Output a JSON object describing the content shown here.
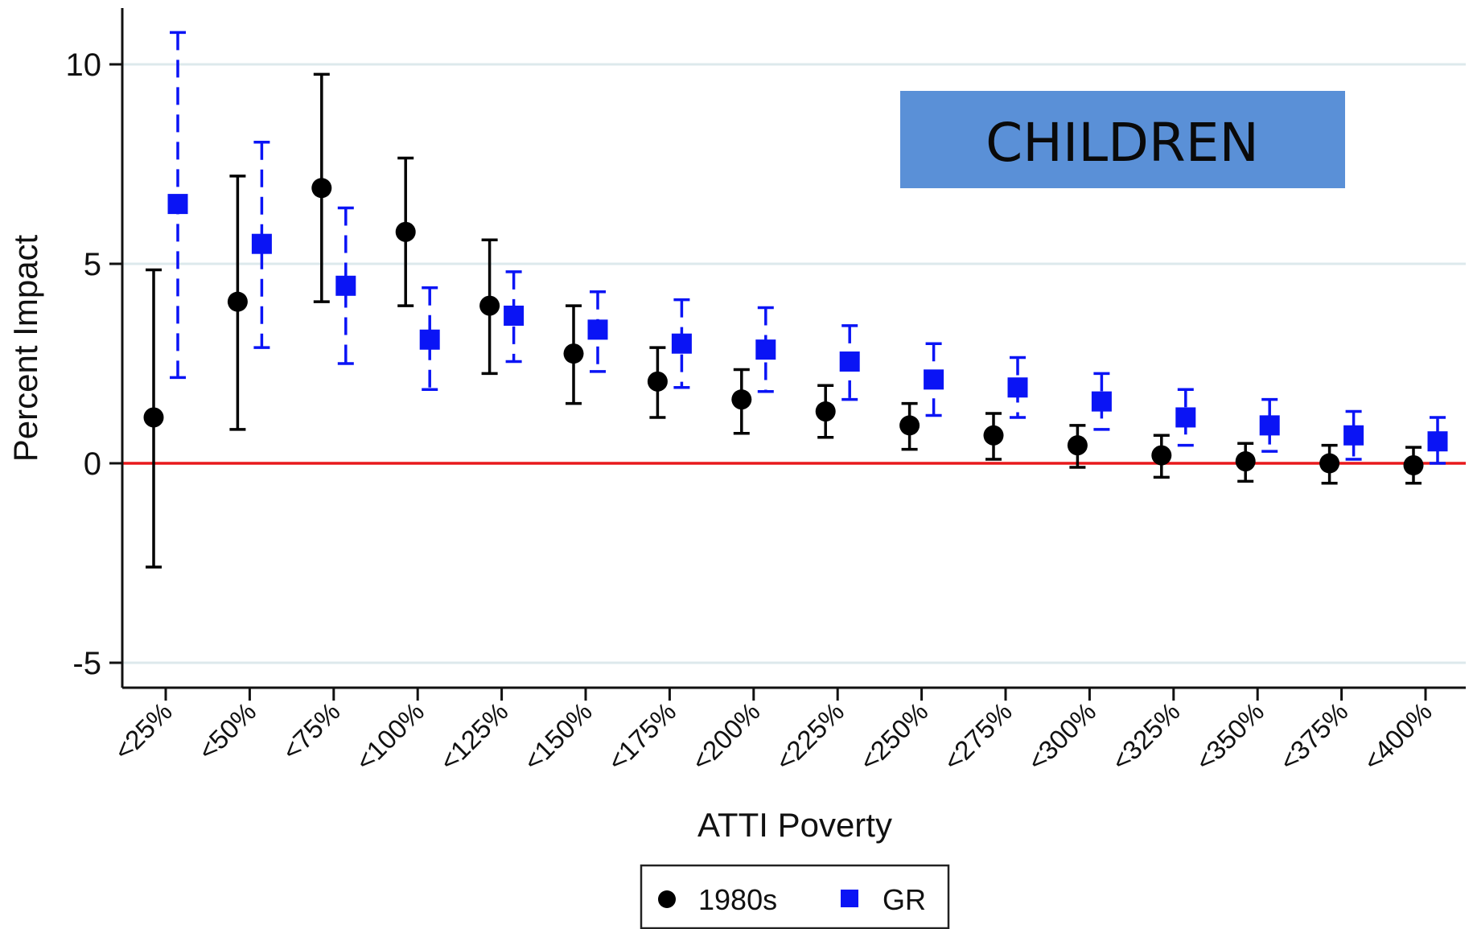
{
  "chart_data": {
    "type": "scatter",
    "categories": [
      "<25%",
      "<50%",
      "<75%",
      "<100%",
      "<125%",
      "<150%",
      "<175%",
      "<200%",
      "<225%",
      "<250%",
      "<275%",
      "<300%",
      "<325%",
      "<350%",
      "<375%",
      "<400%"
    ],
    "xlabel": "ATTI Poverty",
    "ylabel": "Percent Impact",
    "ylim": [
      -5.5,
      11.5
    ],
    "yticks": [
      -5,
      0,
      5,
      10
    ],
    "grid": true,
    "reference_line": {
      "y": 0,
      "color": "#e8191c"
    },
    "annotation": "CHILDREN",
    "legend_position": "bottom-center",
    "series": [
      {
        "name": "1980s",
        "marker": "circle",
        "color": "#000000",
        "errorbar_style": "solid",
        "values": [
          1.15,
          4.05,
          6.9,
          5.8,
          3.95,
          2.75,
          2.05,
          1.6,
          1.3,
          0.95,
          0.7,
          0.45,
          0.2,
          0.05,
          0.0,
          -0.05
        ],
        "lower": [
          -2.6,
          0.85,
          4.05,
          3.95,
          2.25,
          1.5,
          1.15,
          0.75,
          0.65,
          0.35,
          0.1,
          -0.1,
          -0.35,
          -0.45,
          -0.5,
          -0.5
        ],
        "upper": [
          4.85,
          7.2,
          9.75,
          7.65,
          5.6,
          3.95,
          2.9,
          2.35,
          1.95,
          1.5,
          1.25,
          0.95,
          0.7,
          0.5,
          0.45,
          0.4
        ]
      },
      {
        "name": "GR",
        "marker": "square",
        "color": "#0a14f5",
        "errorbar_style": "dashed",
        "values": [
          6.5,
          5.5,
          4.45,
          3.1,
          3.7,
          3.35,
          3.0,
          2.85,
          2.55,
          2.1,
          1.9,
          1.55,
          1.15,
          0.95,
          0.7,
          0.55
        ],
        "lower": [
          2.15,
          2.9,
          2.5,
          1.85,
          2.55,
          2.3,
          1.9,
          1.8,
          1.6,
          1.2,
          1.15,
          0.85,
          0.45,
          0.3,
          0.1,
          0.0
        ],
        "upper": [
          10.8,
          8.05,
          6.4,
          4.4,
          4.8,
          4.3,
          4.1,
          3.9,
          3.45,
          3.0,
          2.65,
          2.25,
          1.85,
          1.6,
          1.3,
          1.15
        ]
      }
    ]
  },
  "colors": {
    "annotation_fill": "#5a90d7",
    "grid": "#dde9ec",
    "axis": "#111111"
  }
}
